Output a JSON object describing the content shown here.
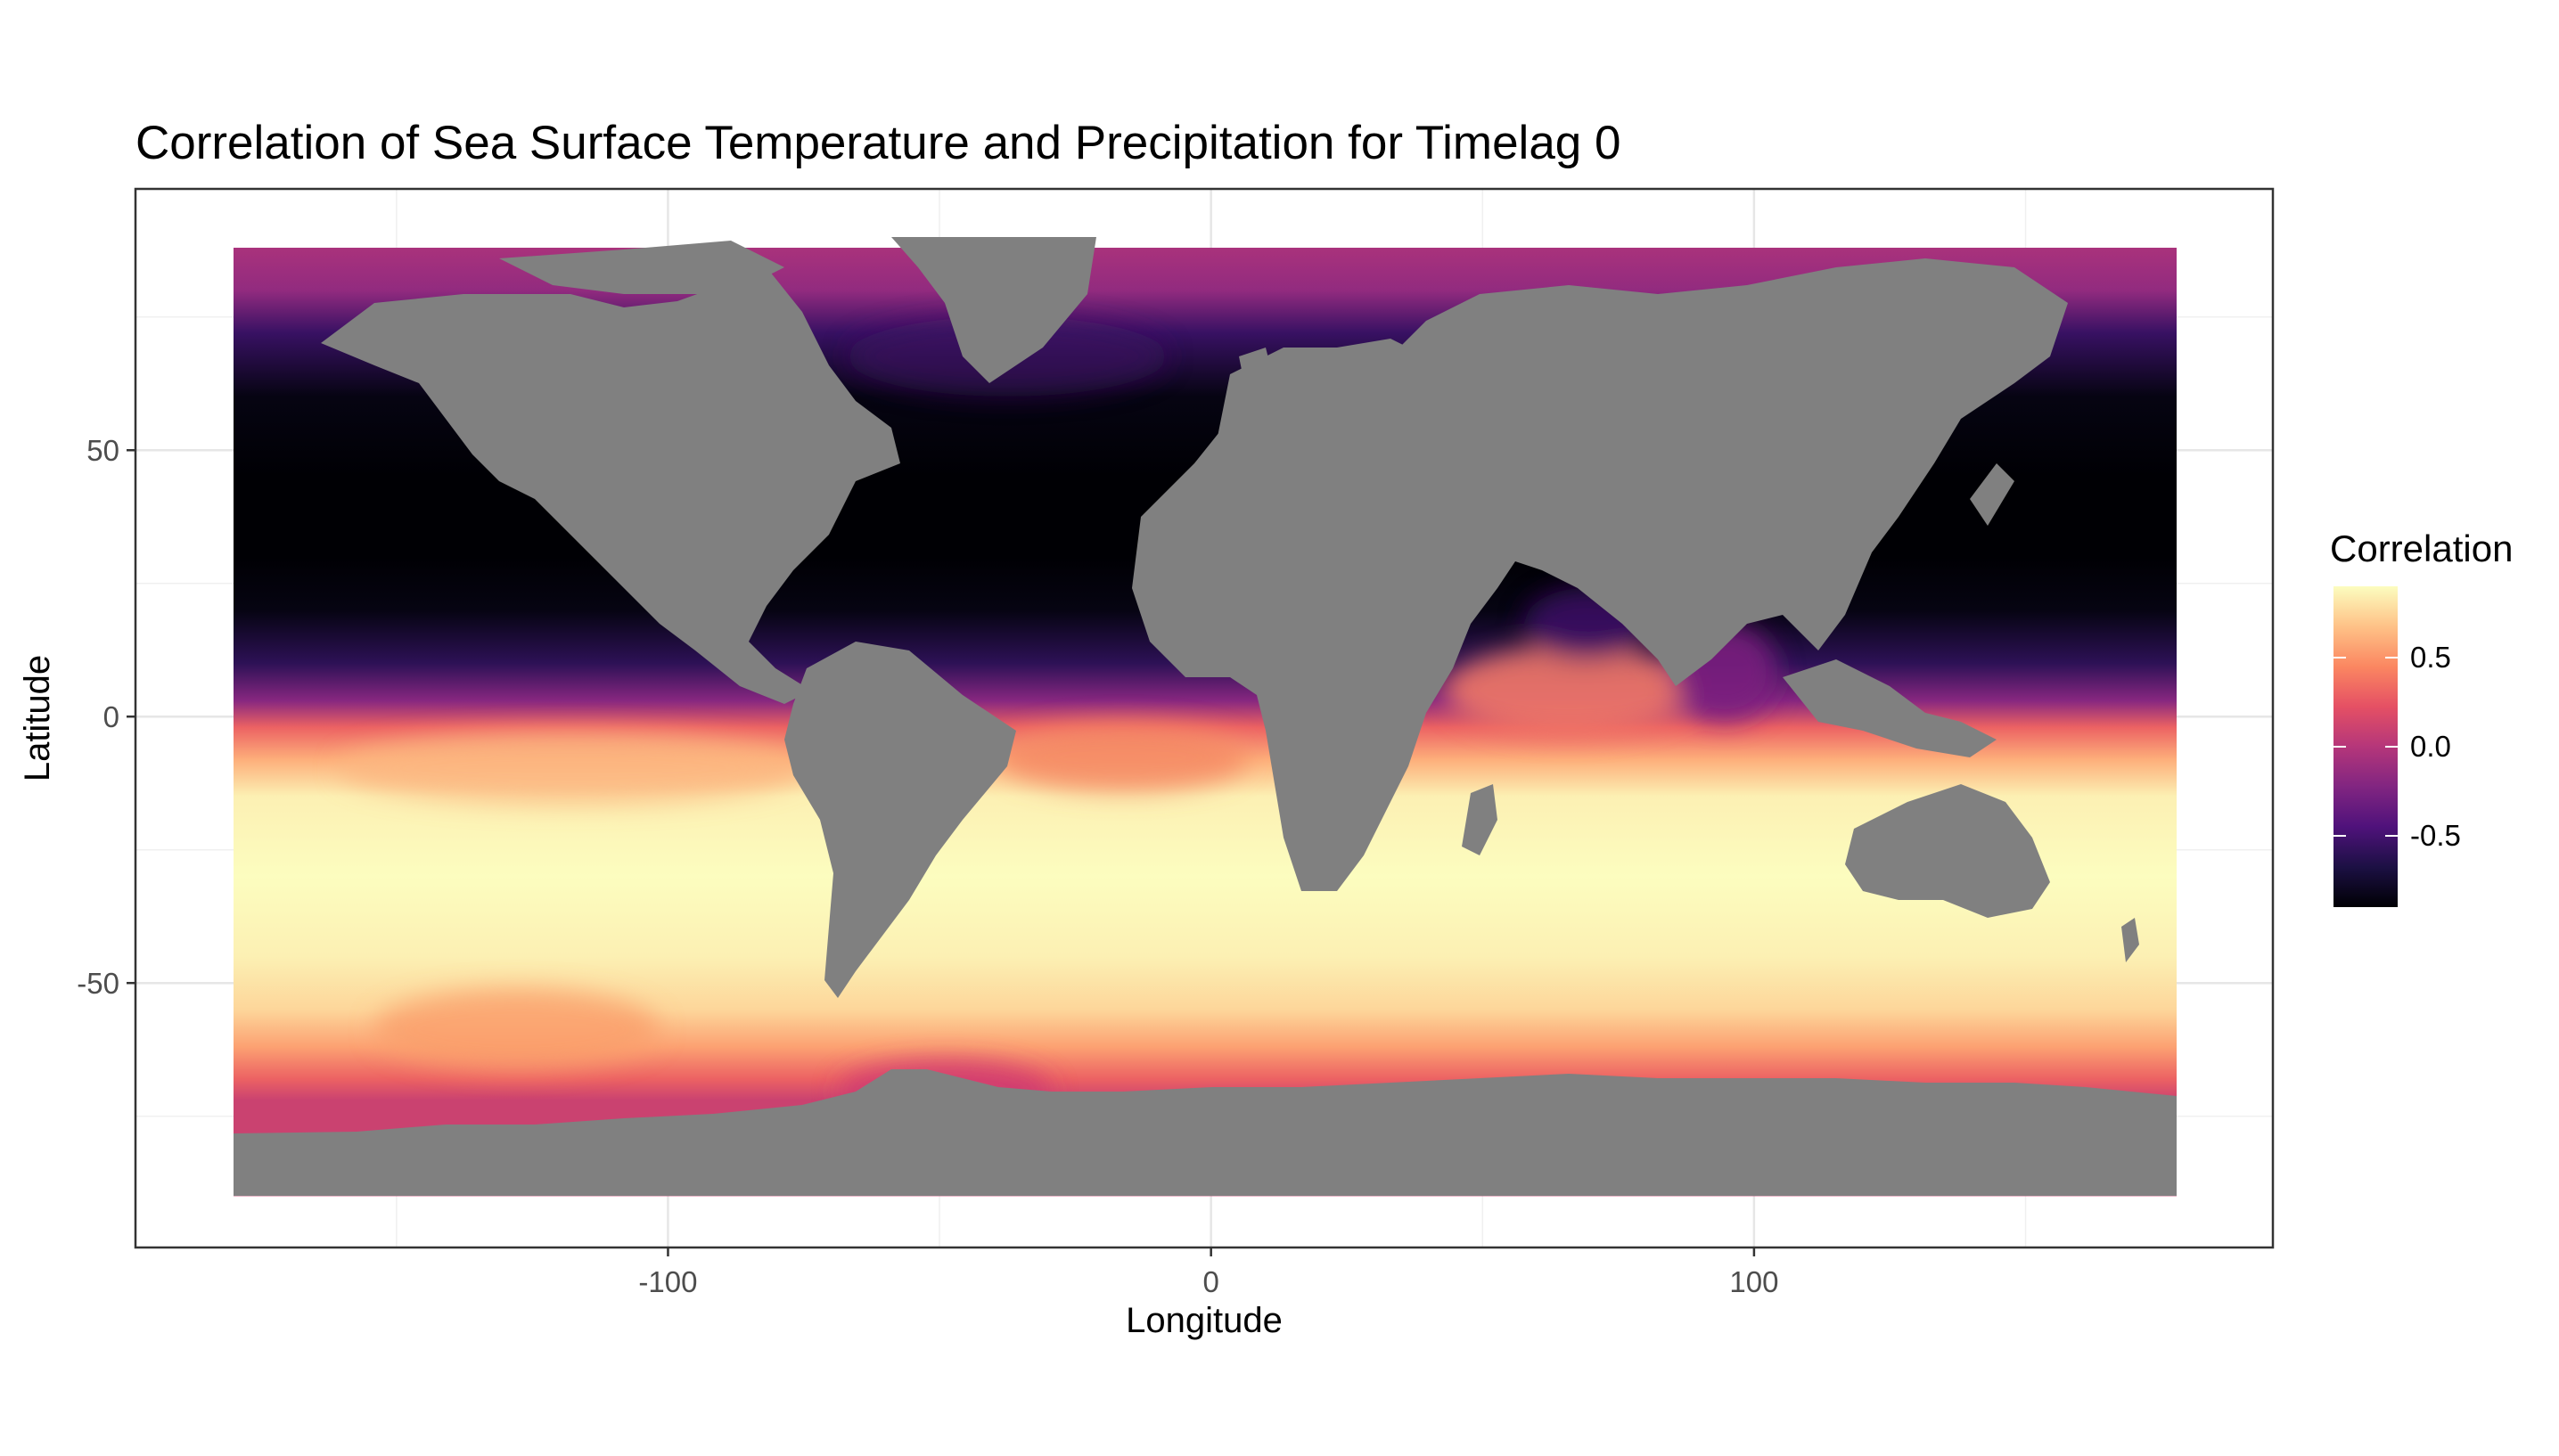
{
  "chart_data": {
    "type": "heatmap",
    "title": "Correlation of Sea Surface Temperature and Precipitation for Timelag 0",
    "xlabel": "Longitude",
    "ylabel": "Latitude",
    "xlim": [
      -180,
      180
    ],
    "ylim": [
      -90,
      90
    ],
    "x_ticks": [
      -100,
      0,
      100
    ],
    "y_ticks": [
      -50,
      0,
      50
    ],
    "x_tick_labels": [
      "-100",
      "0",
      "100"
    ],
    "y_tick_labels": [
      "-50",
      "0",
      "50"
    ],
    "grid": true,
    "land_color": "#808080",
    "legend": {
      "title": "Correlation",
      "placement": "right",
      "range": [
        -0.9,
        0.9
      ],
      "ticks": [
        0.5,
        0.0,
        -0.5
      ],
      "tick_labels": [
        "0.5",
        "0.0",
        "-0.5"
      ],
      "colormap": [
        "#000004",
        "#1c1044",
        "#4f127b",
        "#812581",
        "#b5367a",
        "#e55064",
        "#fb8761",
        "#fec287",
        "#fcfdbf"
      ]
    },
    "zonal_correlation_profile": [
      {
        "lat": 88,
        "value": -0.05
      },
      {
        "lat": 80,
        "value": -0.15
      },
      {
        "lat": 72,
        "value": -0.55
      },
      {
        "lat": 60,
        "value": -0.85
      },
      {
        "lat": 45,
        "value": -0.9
      },
      {
        "lat": 30,
        "value": -0.9
      },
      {
        "lat": 20,
        "value": -0.85
      },
      {
        "lat": 10,
        "value": -0.6
      },
      {
        "lat": 3,
        "value": -0.2
      },
      {
        "lat": -2,
        "value": 0.3
      },
      {
        "lat": -8,
        "value": 0.6
      },
      {
        "lat": -15,
        "value": 0.85
      },
      {
        "lat": -30,
        "value": 0.9
      },
      {
        "lat": -45,
        "value": 0.85
      },
      {
        "lat": -55,
        "value": 0.75
      },
      {
        "lat": -62,
        "value": 0.55
      },
      {
        "lat": -68,
        "value": 0.3
      },
      {
        "lat": -72,
        "value": 0.1
      }
    ]
  }
}
